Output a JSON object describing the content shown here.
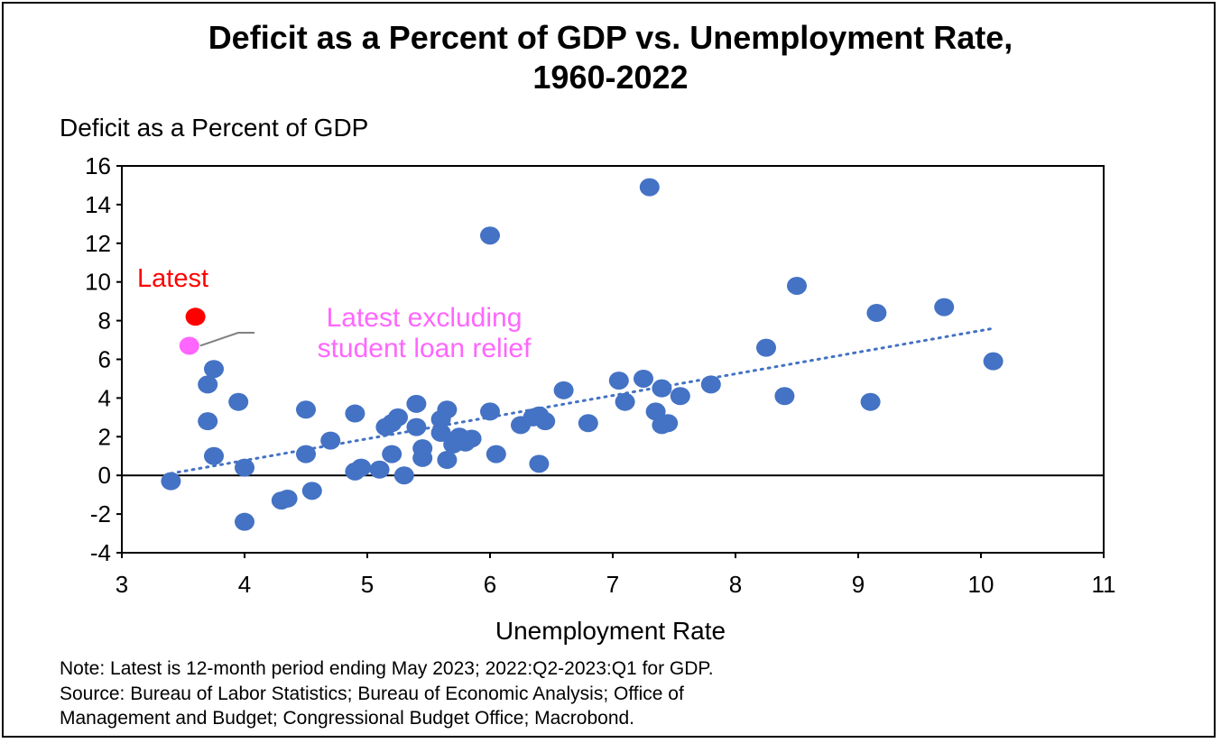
{
  "chart_data": {
    "type": "scatter",
    "title": [
      "Deficit as a Percent of GDP vs. Unemployment Rate,",
      "1960-2022"
    ],
    "ylabel": "Deficit as a Percent of GDP",
    "xlabel": "Unemployment Rate",
    "xlim": [
      3,
      11
    ],
    "ylim": [
      -4,
      16
    ],
    "xticks": [
      3,
      4,
      5,
      6,
      7,
      8,
      9,
      10,
      11
    ],
    "yticks": [
      -4,
      -2,
      0,
      2,
      4,
      6,
      8,
      10,
      12,
      14,
      16
    ],
    "grid": false,
    "series": [
      {
        "name": "1960-2022",
        "color": "#4472C4",
        "points": [
          [
            3.4,
            -0.3
          ],
          [
            3.7,
            4.7
          ],
          [
            3.7,
            2.8
          ],
          [
            3.75,
            5.5
          ],
          [
            3.75,
            1.0
          ],
          [
            3.95,
            3.8
          ],
          [
            4.0,
            -2.4
          ],
          [
            4.0,
            0.4
          ],
          [
            4.3,
            -1.3
          ],
          [
            4.35,
            -1.2
          ],
          [
            4.5,
            3.4
          ],
          [
            4.5,
            1.1
          ],
          [
            4.55,
            -0.8
          ],
          [
            4.7,
            1.8
          ],
          [
            4.9,
            0.2
          ],
          [
            4.9,
            3.2
          ],
          [
            4.95,
            0.4
          ],
          [
            5.1,
            0.3
          ],
          [
            5.15,
            2.5
          ],
          [
            5.2,
            1.1
          ],
          [
            5.2,
            2.7
          ],
          [
            5.25,
            3.0
          ],
          [
            5.3,
            0.0
          ],
          [
            5.4,
            3.7
          ],
          [
            5.4,
            2.5
          ],
          [
            5.45,
            0.9
          ],
          [
            5.45,
            1.4
          ],
          [
            5.6,
            2.2
          ],
          [
            5.6,
            2.9
          ],
          [
            5.65,
            3.4
          ],
          [
            5.65,
            0.8
          ],
          [
            5.7,
            1.6
          ],
          [
            5.75,
            2.0
          ],
          [
            5.8,
            1.7
          ],
          [
            5.85,
            1.9
          ],
          [
            6.0,
            12.4
          ],
          [
            6.0,
            3.3
          ],
          [
            6.05,
            1.1
          ],
          [
            6.25,
            2.6
          ],
          [
            6.35,
            3.0
          ],
          [
            6.4,
            3.1
          ],
          [
            6.4,
            0.6
          ],
          [
            6.45,
            2.8
          ],
          [
            6.6,
            4.4
          ],
          [
            6.8,
            2.7
          ],
          [
            7.05,
            4.9
          ],
          [
            7.1,
            3.8
          ],
          [
            7.25,
            5.0
          ],
          [
            7.3,
            14.9
          ],
          [
            7.35,
            3.3
          ],
          [
            7.4,
            2.6
          ],
          [
            7.4,
            4.5
          ],
          [
            7.45,
            2.7
          ],
          [
            7.55,
            4.1
          ],
          [
            7.8,
            4.7
          ],
          [
            8.25,
            6.6
          ],
          [
            8.4,
            4.1
          ],
          [
            8.5,
            9.8
          ],
          [
            9.1,
            3.8
          ],
          [
            9.15,
            8.4
          ],
          [
            9.7,
            8.7
          ],
          [
            10.1,
            5.9
          ]
        ]
      },
      {
        "name": "Latest",
        "color": "#FF0000",
        "points": [
          [
            3.6,
            8.2
          ]
        ]
      },
      {
        "name": "Latest excluding student loan relief",
        "color": "#FF66FF",
        "points": [
          [
            3.55,
            6.7
          ]
        ]
      }
    ],
    "trendline": {
      "style": "dotted",
      "color": "#4472C4",
      "from": [
        3.4,
        0.1
      ],
      "to": [
        10.1,
        7.6
      ]
    },
    "annotations": {
      "latest": {
        "text": "Latest",
        "color": "#FF0000"
      },
      "latest_ex_line1": {
        "text": "Latest excluding",
        "color": "#FF66FF"
      },
      "latest_ex_line2": {
        "text": "student loan relief",
        "color": "#FF66FF"
      }
    }
  },
  "notes": {
    "line1": "Note: Latest is 12-month period ending May 2023; 2022:Q2-2023:Q1 for GDP.",
    "line2": "Source: Bureau of Labor Statistics; Bureau of Economic Analysis; Office of",
    "line3": "Management and Budget; Congressional Budget Office; Macrobond."
  }
}
